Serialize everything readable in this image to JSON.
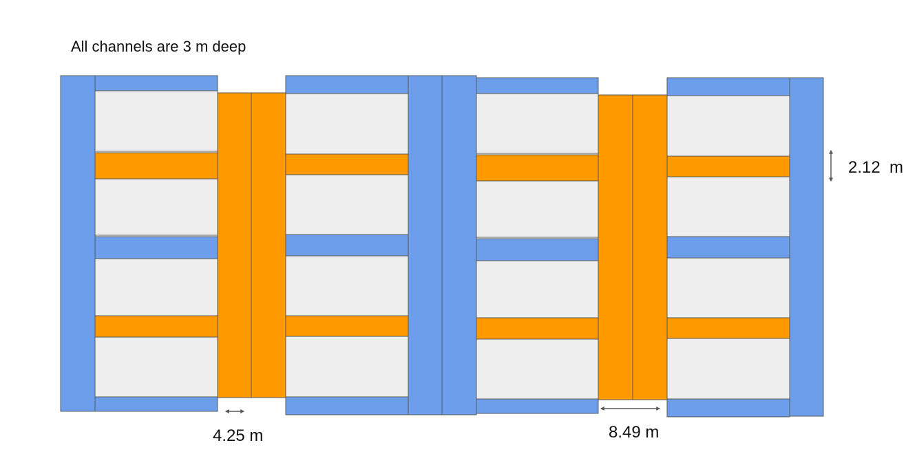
{
  "colors": {
    "blue_channel": "#6d9eeb",
    "orange_channel": "#ff9900",
    "plot_fill": "#eeeeee",
    "outline": "#595959",
    "arrow": "#595959"
  },
  "title": "All channels are 3 m deep",
  "dimensions": {
    "horizontal_small": "4.25 m",
    "horizontal_large": "8.49 m",
    "vertical": "2.12  m"
  },
  "legend": []
}
